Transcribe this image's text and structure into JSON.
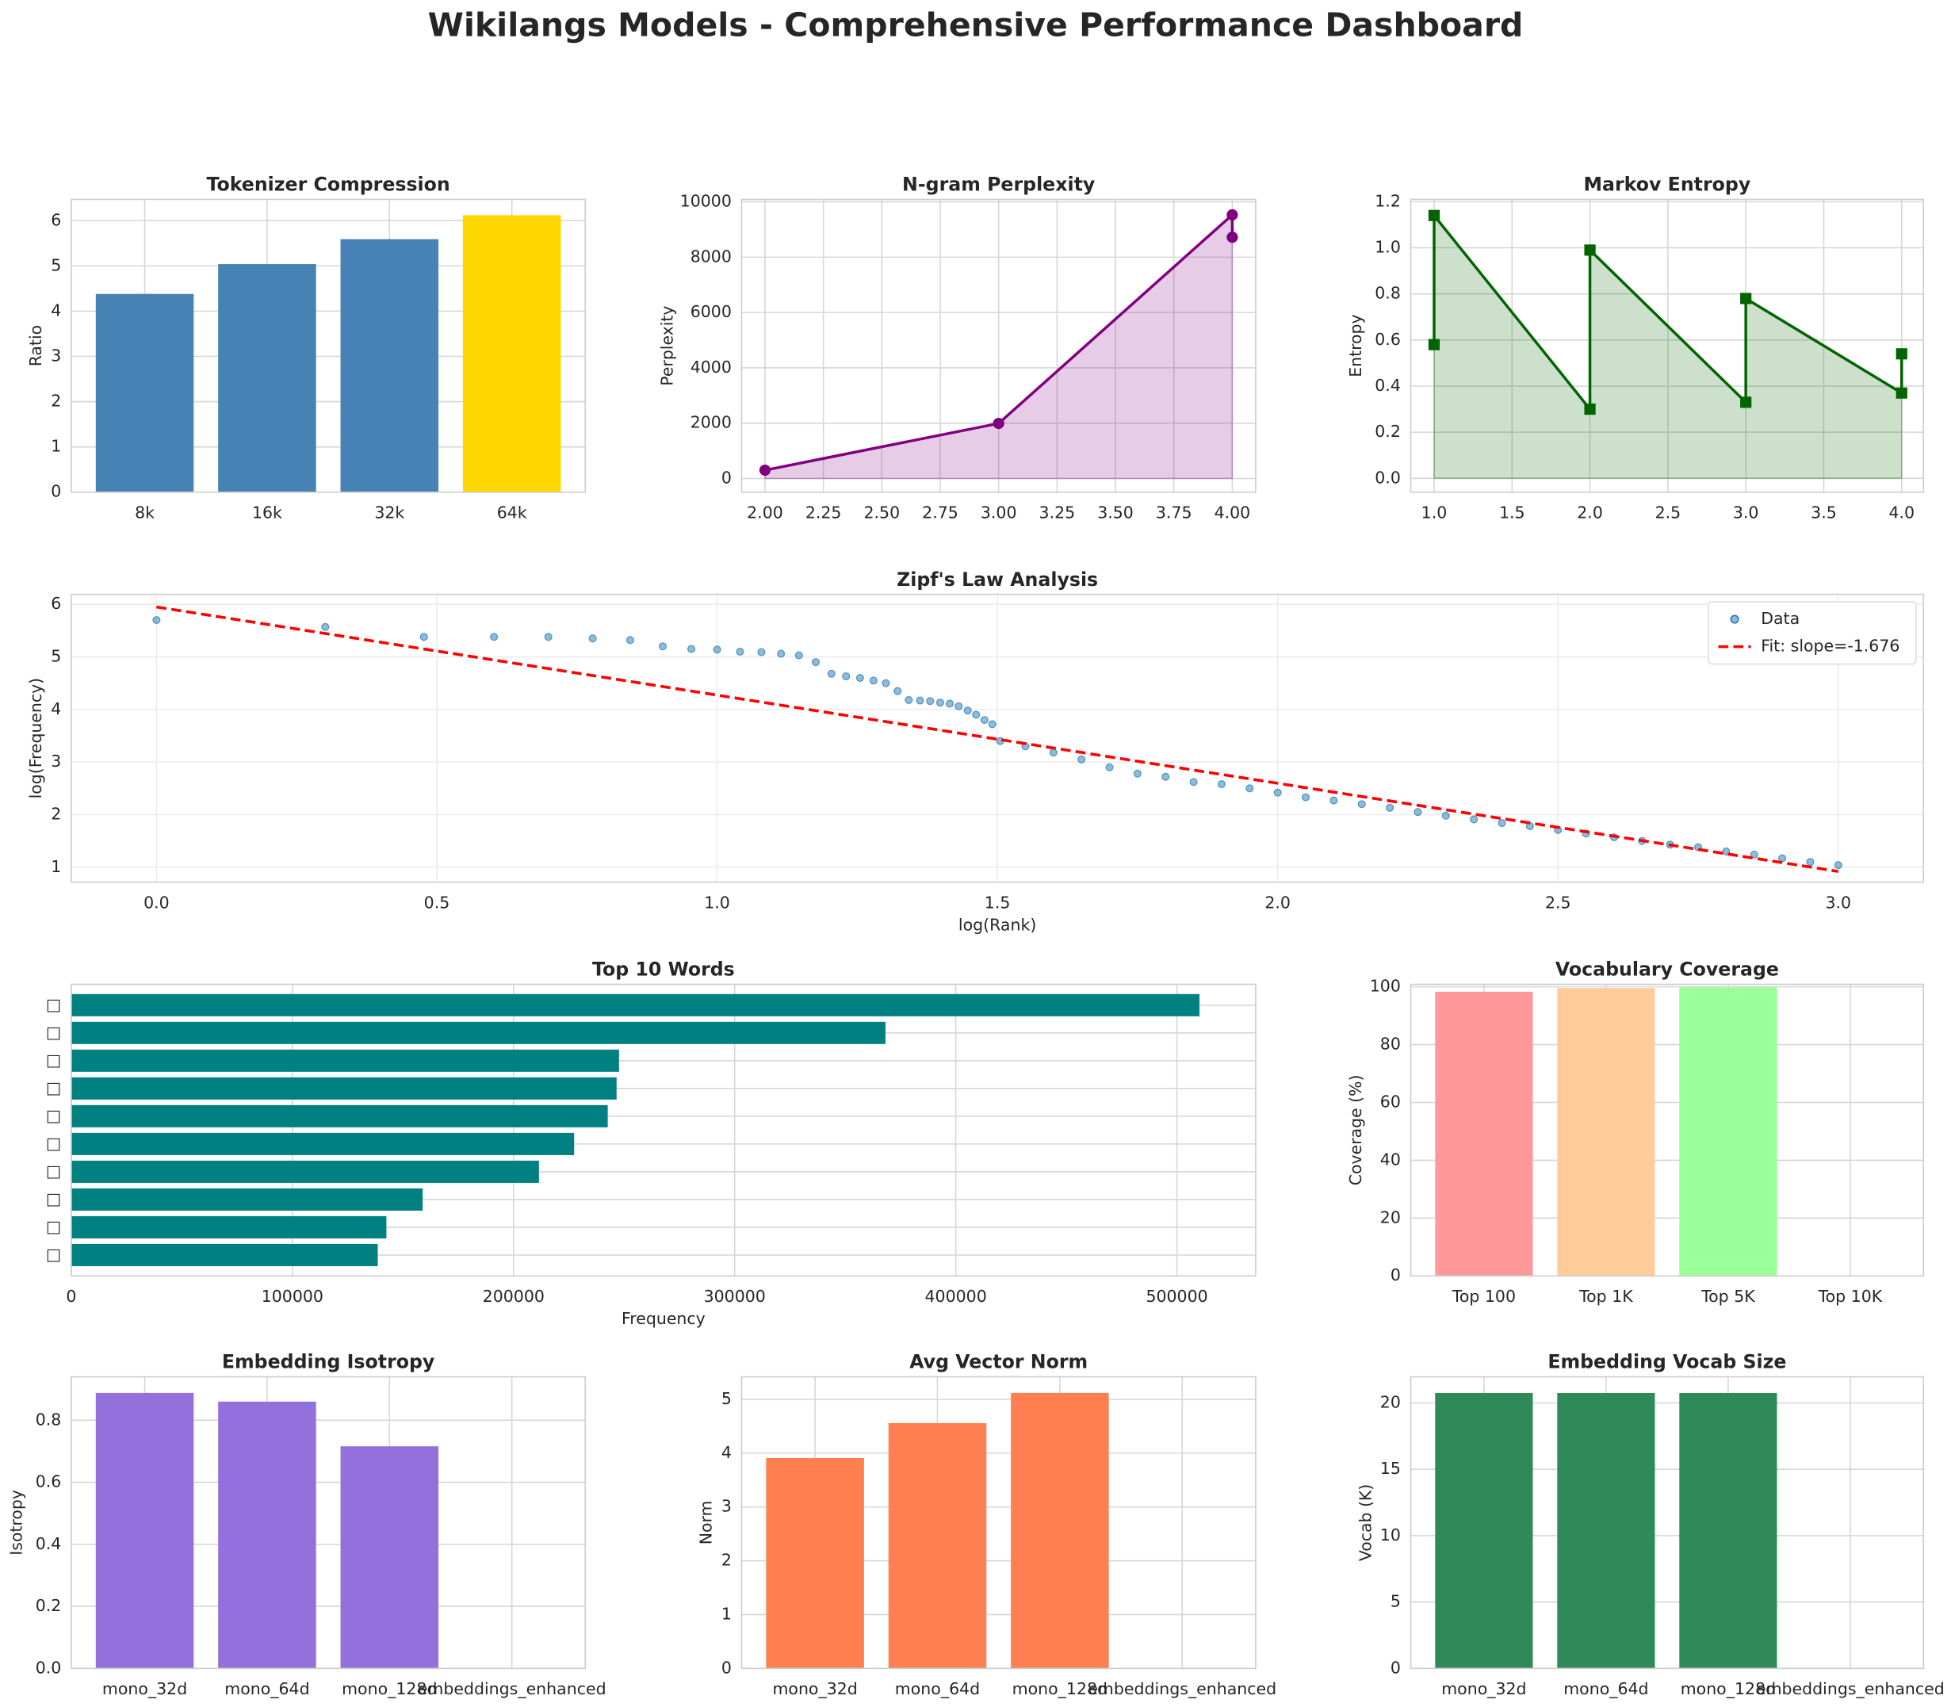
{
  "title": "Wikilangs Models - Comprehensive Performance Dashboard",
  "chart_data": [
    {
      "type": "bar",
      "title": "Tokenizer Compression",
      "ylabel": "Ratio",
      "categories": [
        "8k",
        "16k",
        "32k",
        "64k"
      ],
      "values": [
        4.38,
        5.04,
        5.59,
        6.12
      ],
      "colors": [
        "#4682b4",
        "#4682b4",
        "#4682b4",
        "#ffd700"
      ],
      "ylim": [
        0,
        6.47
      ],
      "yticks": [
        0,
        1,
        2,
        3,
        4,
        5,
        6
      ],
      "grid": true
    },
    {
      "type": "line",
      "title": "N-gram Perplexity",
      "ylabel": "Perplexity",
      "series": [
        {
          "x": [
            2,
            3,
            4,
            4
          ],
          "values": [
            300,
            1990,
            9530,
            8720
          ],
          "color": "#800080",
          "marker": "o",
          "fill": true
        }
      ],
      "xlim": [
        1.9,
        4.1
      ],
      "ylim": [
        -495,
        10090
      ],
      "xticks": [
        {
          "value": 2,
          "label": "2.00"
        },
        {
          "value": 2.25,
          "label": "2.25"
        },
        {
          "value": 2.5,
          "label": "2.50"
        },
        {
          "value": 2.75,
          "label": "2.75"
        },
        {
          "value": 3,
          "label": "3.00"
        },
        {
          "value": 3.25,
          "label": "3.25"
        },
        {
          "value": 3.5,
          "label": "3.50"
        },
        {
          "value": 3.75,
          "label": "3.75"
        },
        {
          "value": 4,
          "label": "4.00"
        }
      ],
      "yticks": [
        0,
        2000,
        4000,
        6000,
        8000,
        10000
      ],
      "grid": true
    },
    {
      "type": "line",
      "title": "Markov Entropy",
      "ylabel": "Entropy",
      "series": [
        {
          "x": [
            1,
            1,
            2,
            2,
            3,
            3,
            4,
            4
          ],
          "values": [
            0.58,
            1.14,
            0.3,
            0.99,
            0.33,
            0.78,
            0.37,
            0.54
          ],
          "color": "#006400",
          "marker": "s",
          "fill": true
        }
      ],
      "xlim": [
        0.85,
        4.14
      ],
      "ylim": [
        -0.06,
        1.21
      ],
      "xticks": [
        {
          "value": 1,
          "label": "1.0"
        },
        1.5,
        {
          "value": 2,
          "label": "2.0"
        },
        2.5,
        {
          "value": 3,
          "label": "3.0"
        },
        3.5,
        {
          "value": 4,
          "label": "4.0"
        }
      ],
      "yticks": [
        {
          "value": 0,
          "label": "0.0"
        },
        0.2,
        0.4,
        0.6,
        0.8,
        {
          "value": 1,
          "label": "1.0"
        },
        1.2
      ],
      "grid": true
    },
    {
      "type": "scatter",
      "title": "Zipf's Law Analysis",
      "xlabel": "log(Rank)",
      "ylabel": "log(Frequency)",
      "legend": "upper right",
      "series": [
        {
          "name": "Data",
          "mark": "scatter",
          "color": "#1f77b4",
          "x": [
            0,
            0.301,
            0.477,
            0.602,
            0.699,
            0.778,
            0.845,
            0.903,
            0.954,
            1,
            1.041,
            1.079,
            1.114,
            1.146,
            1.176,
            1.204,
            1.23,
            1.255,
            1.279,
            1.301,
            1.322,
            1.342,
            1.362,
            1.38,
            1.398,
            1.415,
            1.431,
            1.447,
            1.462,
            1.477,
            1.491,
            1.505,
            1.55,
            1.6,
            1.65,
            1.7,
            1.75,
            1.8,
            1.85,
            1.9,
            1.95,
            2,
            2.05,
            2.1,
            2.15,
            2.2,
            2.25,
            2.3,
            2.35,
            2.4,
            2.45,
            2.5,
            2.55,
            2.6,
            2.65,
            2.7,
            2.75,
            2.8,
            2.85,
            2.9,
            2.95,
            3
          ],
          "values": [
            5.7,
            5.57,
            5.38,
            5.38,
            5.38,
            5.35,
            5.32,
            5.2,
            5.15,
            5.14,
            5.1,
            5.09,
            5.06,
            5.03,
            4.9,
            4.68,
            4.63,
            4.6,
            4.55,
            4.5,
            4.35,
            4.18,
            4.17,
            4.16,
            4.13,
            4.11,
            4.06,
            3.98,
            3.9,
            3.8,
            3.72,
            3.4,
            3.3,
            3.18,
            3.05,
            2.9,
            2.78,
            2.72,
            2.62,
            2.58,
            2.5,
            2.42,
            2.33,
            2.27,
            2.2,
            2.13,
            2.05,
            1.98,
            1.91,
            1.84,
            1.78,
            1.71,
            1.64,
            1.57,
            1.5,
            1.43,
            1.38,
            1.3,
            1.24,
            1.17,
            1.1,
            1.04
          ]
        },
        {
          "name": "Fit: slope=-1.676",
          "mark": "line",
          "color": "#ff0000",
          "x": [
            0,
            3
          ],
          "values": [
            5.95,
            0.92
          ]
        }
      ],
      "xlim": [
        -0.152,
        3.152
      ],
      "ylim": [
        0.716,
        6.19
      ],
      "xticks": [
        {
          "value": 0,
          "label": "0.0"
        },
        0.5,
        {
          "value": 1,
          "label": "1.0"
        },
        1.5,
        {
          "value": 2,
          "label": "2.0"
        },
        2.5,
        {
          "value": 3,
          "label": "3.0"
        }
      ],
      "yticks": [
        1,
        2,
        3,
        4,
        5,
        6
      ],
      "grid": true
    },
    {
      "type": "hbar",
      "title": "Top 10 Words",
      "xlabel": "Frequency",
      "categories": [
        "□",
        "□",
        "□",
        "□",
        "□",
        "□",
        "□",
        "□",
        "□",
        "□"
      ],
      "values": [
        510200,
        368200,
        247700,
        246600,
        242600,
        227400,
        211500,
        158900,
        142500,
        138600
      ],
      "color": "#008080",
      "xlim": [
        0,
        535600
      ],
      "xticks": [
        0,
        100000,
        200000,
        300000,
        400000,
        500000
      ],
      "grid": true
    },
    {
      "type": "bar",
      "title": "Vocabulary Coverage",
      "ylabel": "Coverage (%)",
      "categories": [
        "Top 100",
        "Top 1K",
        "Top 5K",
        "Top 10K"
      ],
      "values": [
        98.3,
        99.6,
        99.8,
        null
      ],
      "colors": [
        "#ff9999",
        "#ffcc99",
        "#99ff99"
      ],
      "ylim": [
        0,
        100.86
      ],
      "yticks": [
        0,
        20,
        40,
        60,
        80,
        100
      ],
      "grid": true
    },
    {
      "type": "bar",
      "title": "Embedding Isotropy",
      "ylabel": "Isotropy",
      "categories": [
        "mono_32d",
        "mono_64d",
        "mono_128d",
        "embeddings_enhanced"
      ],
      "values": [
        0.888,
        0.86,
        0.716,
        null
      ],
      "colors": [
        "#9370db",
        "#9370db",
        "#9370db"
      ],
      "ylim": [
        0,
        0.94
      ],
      "yticks": [
        {
          "value": 0,
          "label": "0.0"
        },
        0.2,
        0.4,
        0.6,
        0.8
      ],
      "grid": true
    },
    {
      "type": "bar",
      "title": "Avg Vector Norm",
      "ylabel": "Norm",
      "categories": [
        "mono_32d",
        "mono_64d",
        "mono_128d",
        "embeddings_enhanced"
      ],
      "values": [
        3.91,
        4.56,
        5.12,
        null
      ],
      "colors": [
        "#ff7f50",
        "#ff7f50",
        "#ff7f50"
      ],
      "ylim": [
        0,
        5.42
      ],
      "yticks": [
        0,
        1,
        2,
        3,
        4,
        5
      ],
      "grid": true
    },
    {
      "type": "bar",
      "title": "Embedding Vocab Size",
      "ylabel": "Vocab (K)",
      "categories": [
        "mono_32d",
        "mono_64d",
        "mono_128d",
        "embeddings_enhanced"
      ],
      "values": [
        20.75,
        20.75,
        20.75,
        null
      ],
      "colors": [
        "#2e8b57",
        "#2e8b57",
        "#2e8b57"
      ],
      "ylim": [
        0,
        21.97
      ],
      "yticks": [
        0,
        5,
        10,
        15,
        20
      ],
      "grid": true
    }
  ]
}
